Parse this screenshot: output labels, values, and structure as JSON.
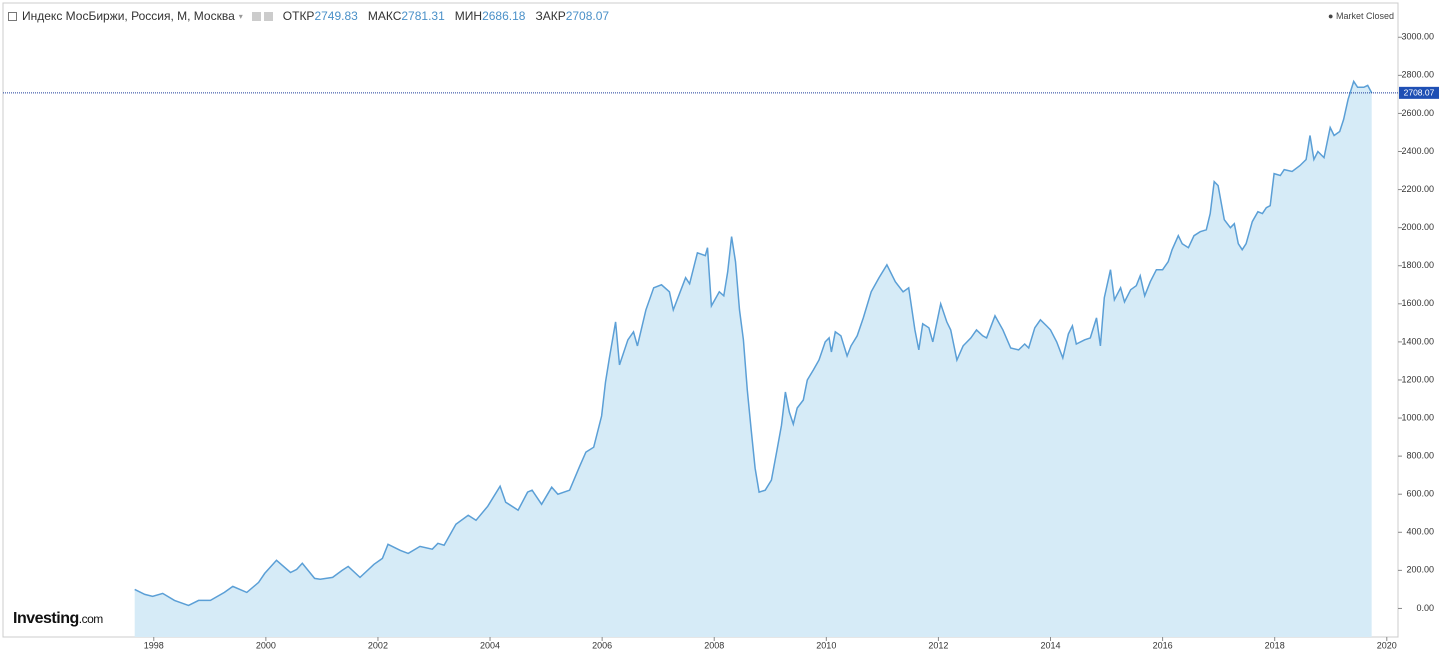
{
  "chart_data": {
    "type": "area",
    "title": "Индекс МосБиржи, Россия, М, Москва",
    "ohlc_labels": [
      "ОТКР",
      "МАКС",
      "МИН",
      "ЗАКР"
    ],
    "ohlc_values": [
      2749.83,
      2781.31,
      2686.18,
      2708.07
    ],
    "status": "Market Closed",
    "brand": "Investing",
    "brand_suffix": ".com",
    "color": "#5b9fd6",
    "fill": "#d6ebf7",
    "xlim": [
      1995.31,
      2020.2
    ],
    "ylim": [
      -150,
      3180
    ],
    "xticks": [
      1998,
      2000,
      2002,
      2004,
      2006,
      2008,
      2010,
      2012,
      2014,
      2016,
      2018,
      2020
    ],
    "yticks": [
      {
        "value": 0,
        "label": "0.00"
      },
      {
        "value": 200,
        "label": "200.00"
      },
      {
        "value": 400,
        "label": "400.00"
      },
      {
        "value": 600,
        "label": "600.00"
      },
      {
        "value": 800,
        "label": "800.00"
      },
      {
        "value": 1000,
        "label": "1000.00"
      },
      {
        "value": 1200,
        "label": "1200.00"
      },
      {
        "value": 1400,
        "label": "1400.00"
      },
      {
        "value": 1600,
        "label": "1600.00"
      },
      {
        "value": 1800,
        "label": "1800.00"
      },
      {
        "value": 2000,
        "label": "2000.00"
      },
      {
        "value": 2200,
        "label": "2200.00"
      },
      {
        "value": 2400,
        "label": "2400.00"
      },
      {
        "value": 2600,
        "label": "2600.00"
      },
      {
        "value": 2800,
        "label": "2800.00"
      },
      {
        "value": 3000,
        "label": "3000.00"
      }
    ],
    "x": [
      1997.66,
      1997.84,
      1997.98,
      1998.16,
      1998.37,
      1998.62,
      1998.8,
      1999.01,
      1999.26,
      1999.41,
      1999.66,
      1999.87,
      1999.98,
      2000.19,
      2000.44,
      2000.55,
      2000.65,
      2000.87,
      2000.97,
      2001.19,
      2001.36,
      2001.47,
      2001.68,
      2001.93,
      2002.08,
      2002.18,
      2002.4,
      2002.54,
      2002.75,
      2002.97,
      2003.07,
      2003.18,
      2003.39,
      2003.61,
      2003.75,
      2003.96,
      2004.18,
      2004.28,
      2004.5,
      2004.67,
      2004.75,
      2004.92,
      2005.1,
      2005.21,
      2005.42,
      2005.6,
      2005.71,
      2005.85,
      2005.99,
      2006.06,
      2006.13,
      2006.24,
      2006.31,
      2006.46,
      2006.56,
      2006.63,
      2006.78,
      2006.92,
      2007.06,
      2007.2,
      2007.27,
      2007.49,
      2007.56,
      2007.7,
      2007.84,
      2007.88,
      2007.95,
      2008.09,
      2008.17,
      2008.24,
      2008.31,
      2008.38,
      2008.45,
      2008.52,
      2008.59,
      2008.66,
      2008.73,
      2008.8,
      2008.91,
      2009.02,
      2009.12,
      2009.2,
      2009.27,
      2009.34,
      2009.41,
      2009.48,
      2009.59,
      2009.66,
      2009.77,
      2009.87,
      2009.98,
      2010.05,
      2010.09,
      2010.16,
      2010.26,
      2010.37,
      2010.44,
      2010.55,
      2010.66,
      2010.8,
      2010.94,
      2011.08,
      2011.23,
      2011.37,
      2011.47,
      2011.58,
      2011.65,
      2011.72,
      2011.83,
      2011.9,
      2012.04,
      2012.15,
      2012.22,
      2012.33,
      2012.44,
      2012.58,
      2012.68,
      2012.79,
      2012.86,
      2013.01,
      2013.15,
      2013.29,
      2013.43,
      2013.54,
      2013.61,
      2013.72,
      2013.82,
      2013.93,
      2014.0,
      2014.11,
      2014.22,
      2014.32,
      2014.39,
      2014.46,
      2014.61,
      2014.71,
      2014.82,
      2014.89,
      2014.96,
      2015.07,
      2015.14,
      2015.25,
      2015.32,
      2015.43,
      2015.53,
      2015.6,
      2015.68,
      2015.78,
      2015.89,
      2016.0,
      2016.1,
      2016.17,
      2016.28,
      2016.35,
      2016.46,
      2016.56,
      2016.67,
      2016.78,
      2016.85,
      2016.92,
      2016.99,
      2017.1,
      2017.21,
      2017.28,
      2017.35,
      2017.42,
      2017.49,
      2017.6,
      2017.7,
      2017.78,
      2017.85,
      2017.92,
      2017.99,
      2018.1,
      2018.17,
      2018.31,
      2018.45,
      2018.56,
      2018.63,
      2018.7,
      2018.77,
      2018.88,
      2018.99,
      2019.06,
      2019.16,
      2019.23,
      2019.31,
      2019.41,
      2019.48,
      2019.59,
      2019.66,
      2019.73
    ],
    "values": [
      100,
      74,
      63,
      79,
      42,
      16,
      42,
      42,
      84,
      116,
      84,
      137,
      184,
      253,
      189,
      205,
      237,
      158,
      153,
      163,
      200,
      221,
      163,
      232,
      263,
      337,
      305,
      289,
      326,
      311,
      342,
      332,
      442,
      489,
      463,
      537,
      642,
      558,
      516,
      611,
      621,
      547,
      637,
      600,
      621,
      747,
      821,
      847,
      1011,
      1189,
      1316,
      1505,
      1279,
      1411,
      1453,
      1379,
      1568,
      1684,
      1700,
      1663,
      1568,
      1737,
      1705,
      1868,
      1853,
      1895,
      1589,
      1663,
      1642,
      1768,
      1953,
      1821,
      1568,
      1411,
      1147,
      937,
      737,
      611,
      621,
      674,
      832,
      963,
      1137,
      1032,
      968,
      1053,
      1095,
      1200,
      1253,
      1305,
      1400,
      1421,
      1347,
      1453,
      1432,
      1326,
      1379,
      1432,
      1526,
      1663,
      1737,
      1805,
      1716,
      1663,
      1684,
      1463,
      1358,
      1495,
      1474,
      1400,
      1600,
      1505,
      1463,
      1305,
      1379,
      1421,
      1463,
      1432,
      1421,
      1537,
      1463,
      1368,
      1358,
      1389,
      1368,
      1474,
      1516,
      1484,
      1463,
      1400,
      1316,
      1442,
      1484,
      1389,
      1411,
      1421,
      1526,
      1379,
      1632,
      1779,
      1621,
      1684,
      1610,
      1674,
      1695,
      1747,
      1642,
      1716,
      1779,
      1779,
      1821,
      1884,
      1958,
      1916,
      1895,
      1958,
      1979,
      1989,
      2074,
      2242,
      2221,
      2042,
      2000,
      2021,
      1916,
      1884,
      1916,
      2032,
      2084,
      2074,
      2105,
      2116,
      2284,
      2274,
      2305,
      2295,
      2326,
      2358,
      2484,
      2358,
      2400,
      2368,
      2526,
      2484,
      2505,
      2568,
      2674,
      2768,
      2737,
      2737,
      2747,
      2708
    ]
  }
}
